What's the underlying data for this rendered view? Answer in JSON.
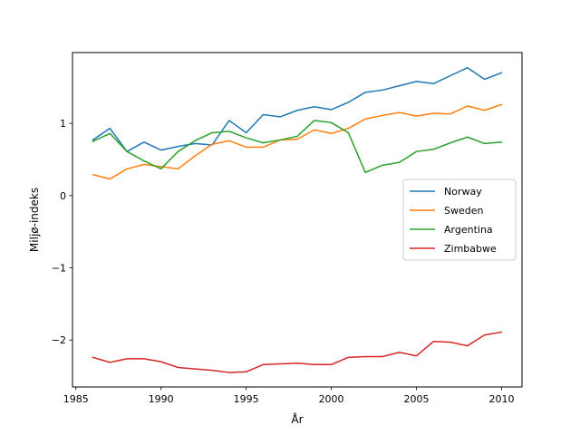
{
  "chart_data": {
    "type": "line",
    "title": "",
    "xlabel": "År",
    "ylabel": "Miljø-indeks",
    "xlim": [
      1984.8,
      2011.2
    ],
    "ylim": [
      -2.65,
      1.98
    ],
    "xticks": [
      1985,
      1990,
      1995,
      2000,
      2005,
      2010
    ],
    "xtick_labels": [
      "1985",
      "1990",
      "1995",
      "2000",
      "2005",
      "2010"
    ],
    "yticks": [
      -2,
      -1,
      0,
      1
    ],
    "ytick_labels": [
      "−2",
      "−1",
      "0",
      "1"
    ],
    "grid": false,
    "legend": "center-right",
    "x": [
      1986,
      1987,
      1988,
      1989,
      1990,
      1991,
      1992,
      1993,
      1994,
      1995,
      1996,
      1997,
      1998,
      1999,
      2000,
      2001,
      2002,
      2003,
      2004,
      2005,
      2006,
      2007,
      2008,
      2009,
      2010
    ],
    "series": [
      {
        "name": "Norway",
        "color": "#1f77b4",
        "values": [
          0.77,
          0.93,
          0.61,
          0.74,
          0.63,
          0.68,
          0.72,
          0.7,
          1.04,
          0.87,
          1.12,
          1.09,
          1.18,
          1.23,
          1.19,
          1.29,
          1.43,
          1.46,
          1.52,
          1.58,
          1.55,
          1.66,
          1.77,
          1.61,
          1.7
        ]
      },
      {
        "name": "Sweden",
        "color": "#ff7f0e",
        "values": [
          0.29,
          0.23,
          0.37,
          0.43,
          0.4,
          0.37,
          0.55,
          0.71,
          0.76,
          0.67,
          0.67,
          0.77,
          0.78,
          0.91,
          0.86,
          0.93,
          1.06,
          1.11,
          1.15,
          1.1,
          1.14,
          1.13,
          1.24,
          1.18,
          1.26
        ]
      },
      {
        "name": "Argentina",
        "color": "#2ca02c",
        "values": [
          0.75,
          0.86,
          0.61,
          0.48,
          0.37,
          0.61,
          0.76,
          0.87,
          0.89,
          0.8,
          0.73,
          0.77,
          0.82,
          1.04,
          1.01,
          0.87,
          0.32,
          0.42,
          0.46,
          0.61,
          0.64,
          0.73,
          0.81,
          0.72,
          0.74
        ]
      },
      {
        "name": "Zimbabwe",
        "color": "#d62728",
        "values": [
          -2.24,
          -2.31,
          -2.26,
          -2.26,
          -2.3,
          -2.38,
          -2.4,
          -2.42,
          -2.45,
          -2.44,
          -2.34,
          -2.33,
          -2.32,
          -2.34,
          -2.34,
          -2.24,
          -2.23,
          -2.23,
          -2.17,
          -2.22,
          -2.02,
          -2.03,
          -2.08,
          -1.93,
          -1.89
        ]
      }
    ]
  }
}
